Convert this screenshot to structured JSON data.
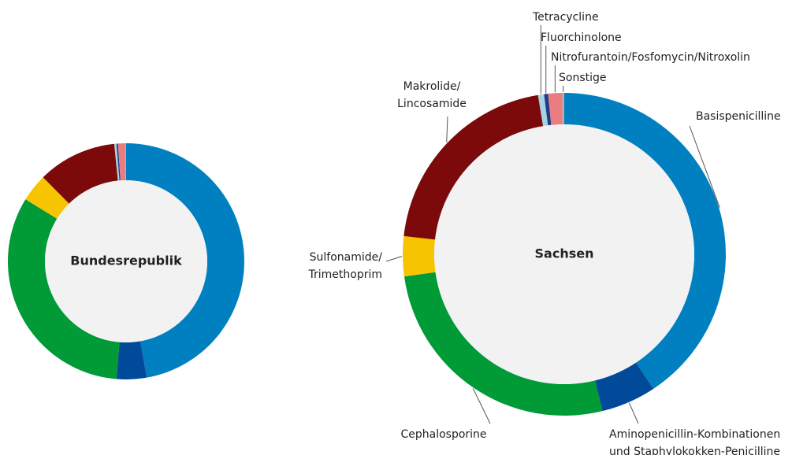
{
  "chart_data": [
    {
      "type": "pie",
      "title": "Bundesrepublik",
      "values": [
        47.2,
        4.1,
        32.5,
        3.8,
        10.8,
        0.3,
        0.2,
        1.0,
        0.1
      ],
      "colors": [
        "#0080c0",
        "#004a99",
        "#009a37",
        "#f6c400",
        "#7c0a0a",
        "#a6d3e2",
        "#1f3c8c",
        "#e97d7f",
        "#b0b0b0"
      ]
    },
    {
      "type": "pie",
      "title": "Sachsen",
      "categories": [
        [
          "Basispenicilline"
        ],
        [
          "Aminopenicillin-Kombinationen",
          "und Staphylokokken-Penicilline"
        ],
        [
          "Cephalosporine"
        ],
        [
          "Sulfonamide/",
          "Trimethoprim"
        ],
        [
          "Makrolide/",
          "Lincosamide"
        ],
        [
          "Tetracycline"
        ],
        [
          "Fluorchinolone"
        ],
        [
          "Nitrofurantoin/Fosfomycin/Nitroxolin"
        ],
        [
          "Sonstige"
        ]
      ],
      "values": [
        40.7,
        5.5,
        26.6,
        4.0,
        20.6,
        0.6,
        0.4,
        1.4,
        0.2
      ],
      "colors": [
        "#0080c0",
        "#004a99",
        "#009a37",
        "#f6c400",
        "#7c0a0a",
        "#a6d3e2",
        "#1f3c8c",
        "#e97d7f",
        "#b0b0b0"
      ]
    }
  ]
}
